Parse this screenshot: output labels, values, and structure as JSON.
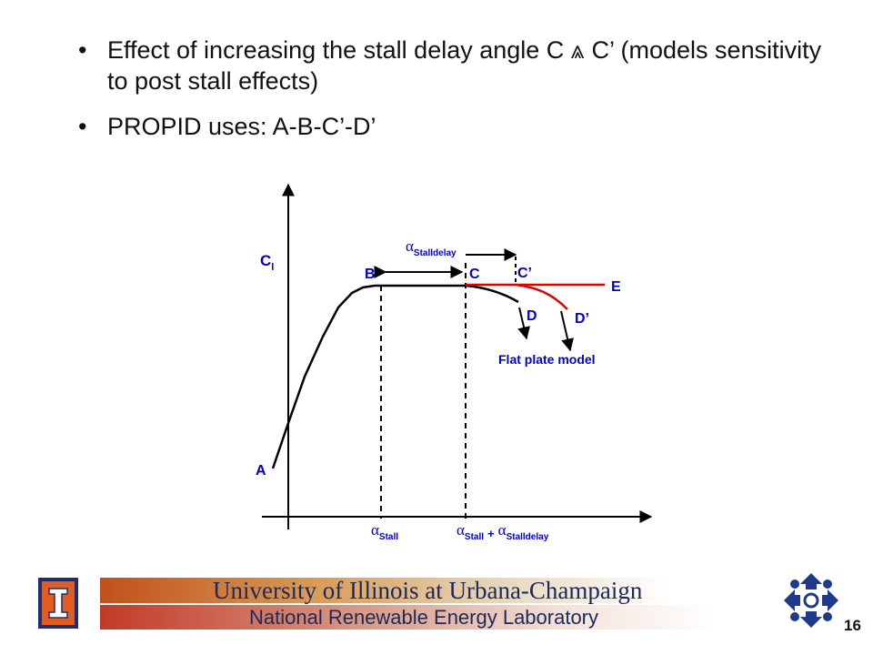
{
  "slide": {
    "bullets": [
      {
        "text": "Effect of increasing the stall delay angle C ⩓ C’ (models sensitivity to post stall effects)"
      },
      {
        "text": "PROPID uses: A-B-C’-D’"
      }
    ]
  },
  "diagram": {
    "y_axis_label": "C",
    "y_axis_subscript": "l",
    "x_label_stall_alpha": "α",
    "x_label_stall_sub": "Stall",
    "x_label_sum_alpha1": "α",
    "x_label_sum_sub1": "Stall",
    "x_label_sum_plus": "+",
    "x_label_sum_alpha2": "α",
    "x_label_sum_sub2": "Stalldelay",
    "delay_label_alpha": "α",
    "delay_label_sub": "Stalldelay",
    "points": {
      "A": "A",
      "B": "B",
      "C": "C",
      "C_prime": "C’",
      "D": "D",
      "D_prime": "D’",
      "E": "E"
    },
    "flat_plate_label": "Flat plate model",
    "colors": {
      "curve": "#000000",
      "red_curve": "#e00000",
      "label": "#0000cc"
    }
  },
  "footer": {
    "university": "University of Illinois at Urbana-Champaign",
    "lab": "National Renewable Energy Laboratory",
    "page_number": "16"
  }
}
